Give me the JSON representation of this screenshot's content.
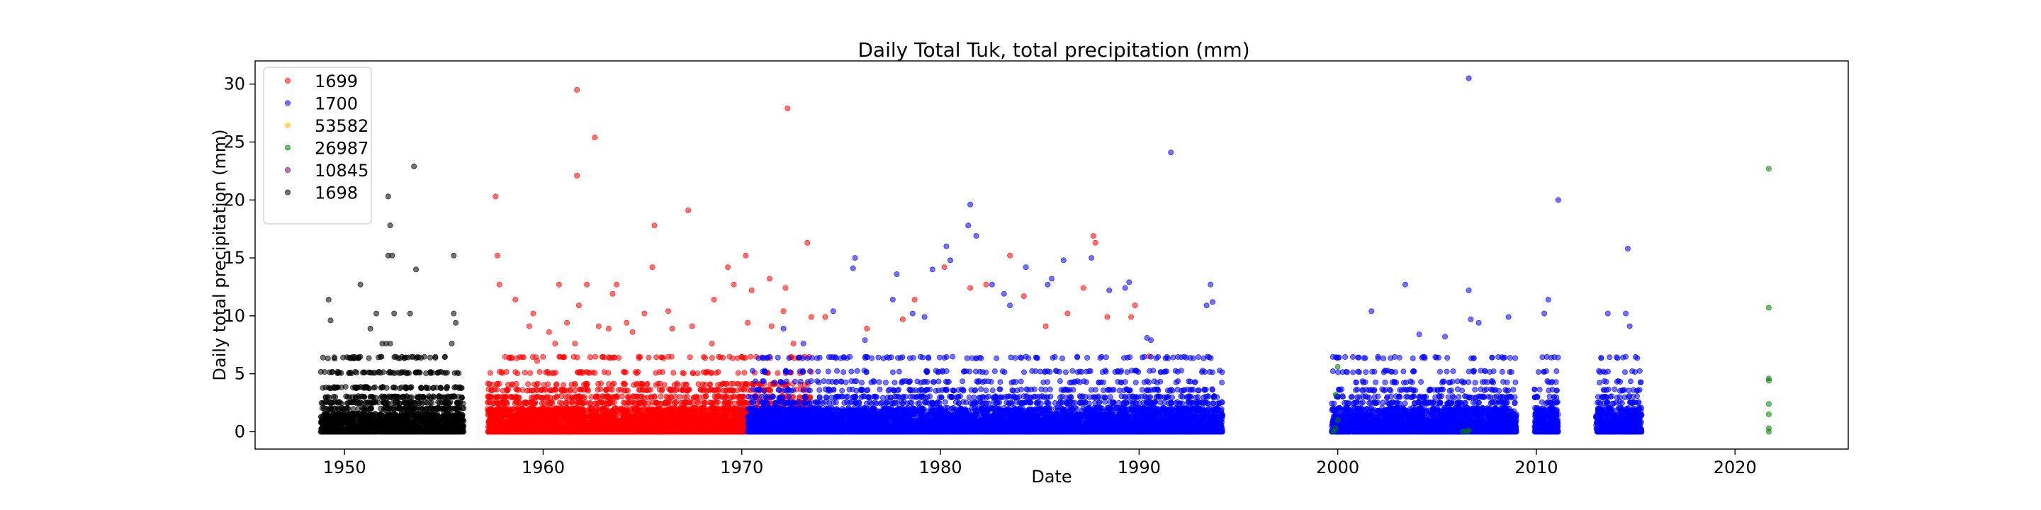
{
  "chart_data": {
    "type": "scatter",
    "title": "Daily Total Tuk, total precipitation (mm)",
    "xlabel": "Date",
    "ylabel": "Daily total precipitation (mm)",
    "xlim": [
      1945.5,
      2025.7
    ],
    "ylim": [
      -1.5,
      32
    ],
    "xticks": [
      1950,
      1960,
      1970,
      1980,
      1990,
      2000,
      2010,
      2020
    ],
    "yticks": [
      0,
      5,
      10,
      15,
      20,
      25,
      30
    ],
    "grid": false,
    "legend_position": "top-left",
    "series": [
      {
        "name": "1699",
        "color": "#ff0000",
        "active_range": [
          1957.2,
          1973.5
        ],
        "values": [
          [
            1957.6,
            20.3
          ],
          [
            1957.7,
            15.2
          ],
          [
            1957.8,
            12.7
          ],
          [
            1958.6,
            11.4
          ],
          [
            1959.3,
            9.1
          ],
          [
            1959.5,
            10.2
          ],
          [
            1959.7,
            6.1
          ],
          [
            1960.3,
            8.6
          ],
          [
            1960.6,
            7.6
          ],
          [
            1960.8,
            12.7
          ],
          [
            1961.2,
            9.4
          ],
          [
            1961.6,
            7.6
          ],
          [
            1961.7,
            29.5
          ],
          [
            1961.7,
            22.1
          ],
          [
            1961.8,
            10.9
          ],
          [
            1962.2,
            12.7
          ],
          [
            1962.6,
            25.4
          ],
          [
            1962.8,
            9.1
          ],
          [
            1963.3,
            8.9
          ],
          [
            1963.5,
            11.9
          ],
          [
            1963.7,
            12.7
          ],
          [
            1964.2,
            9.4
          ],
          [
            1964.5,
            8.6
          ],
          [
            1965.1,
            10.2
          ],
          [
            1965.5,
            14.2
          ],
          [
            1965.6,
            17.8
          ],
          [
            1966.3,
            10.4
          ],
          [
            1966.5,
            8.9
          ],
          [
            1967.3,
            19.1
          ],
          [
            1967.5,
            9.1
          ],
          [
            1968.5,
            7.6
          ],
          [
            1968.6,
            11.4
          ],
          [
            1969.3,
            14.2
          ],
          [
            1969.6,
            12.7
          ],
          [
            1970.2,
            15.2
          ],
          [
            1970.3,
            9.4
          ],
          [
            1970.5,
            12.2
          ],
          [
            1971.4,
            13.2
          ],
          [
            1971.5,
            9.1
          ],
          [
            1972.1,
            10.4
          ],
          [
            1972.2,
            12.4
          ],
          [
            1972.3,
            27.9
          ],
          [
            1972.6,
            7.6
          ],
          [
            1973.3,
            16.3
          ],
          [
            1973.5,
            9.9
          ],
          [
            1974.2,
            9.9
          ],
          [
            1976.3,
            8.9
          ],
          [
            1978.1,
            9.7
          ],
          [
            1978.7,
            11.4
          ],
          [
            1980.2,
            14.2
          ],
          [
            1981.5,
            12.4
          ],
          [
            1982.3,
            12.7
          ],
          [
            1983.5,
            15.2
          ],
          [
            1984.2,
            11.7
          ],
          [
            1985.3,
            9.1
          ],
          [
            1986.4,
            10.2
          ],
          [
            1987.2,
            12.4
          ],
          [
            1987.7,
            16.9
          ],
          [
            1987.8,
            16.3
          ],
          [
            1988.4,
            9.9
          ],
          [
            1989.6,
            9.9
          ],
          [
            1989.8,
            10.9
          ],
          [
            1990.5,
            6.5
          ]
        ],
        "density_rows": [
          0,
          0.3,
          0.5,
          0.8,
          1.0,
          1.3,
          1.5,
          1.8,
          2.0,
          2.5,
          3.0,
          3.6,
          4.1,
          5.1,
          6.4
        ]
      },
      {
        "name": "1700",
        "color": "#0000ff",
        "active_range": [
          1970.3,
          1994.2
        ],
        "values": [
          [
            1972.1,
            8.9
          ],
          [
            1973.1,
            7.6
          ],
          [
            1974.6,
            10.4
          ],
          [
            1975.6,
            14.1
          ],
          [
            1975.7,
            15.0
          ],
          [
            1976.2,
            7.9
          ],
          [
            1977.6,
            11.4
          ],
          [
            1977.8,
            13.6
          ],
          [
            1978.6,
            10.2
          ],
          [
            1979.2,
            9.9
          ],
          [
            1979.6,
            14.0
          ],
          [
            1980.3,
            16.0
          ],
          [
            1980.5,
            14.8
          ],
          [
            1981.4,
            17.8
          ],
          [
            1981.5,
            19.6
          ],
          [
            1981.8,
            16.9
          ],
          [
            1982.6,
            12.7
          ],
          [
            1983.2,
            11.9
          ],
          [
            1983.5,
            10.9
          ],
          [
            1984.3,
            14.2
          ],
          [
            1985.4,
            12.7
          ],
          [
            1985.6,
            13.2
          ],
          [
            1986.2,
            14.8
          ],
          [
            1987.6,
            15.0
          ],
          [
            1988.5,
            12.2
          ],
          [
            1989.3,
            12.4
          ],
          [
            1989.5,
            12.9
          ],
          [
            1990.4,
            8.1
          ],
          [
            1990.6,
            7.9
          ],
          [
            1991.6,
            24.1
          ],
          [
            1993.4,
            10.9
          ],
          [
            1993.6,
            12.7
          ],
          [
            1993.7,
            11.2
          ],
          [
            2001.7,
            10.4
          ],
          [
            2003.4,
            12.7
          ],
          [
            2004.1,
            8.4
          ],
          [
            2005.4,
            8.2
          ],
          [
            2006.6,
            30.5
          ],
          [
            2006.6,
            12.2
          ],
          [
            2006.7,
            9.7
          ],
          [
            2007.1,
            9.4
          ],
          [
            2008.6,
            9.9
          ],
          [
            2010.4,
            10.2
          ],
          [
            2010.6,
            11.4
          ],
          [
            2011.1,
            20.0
          ],
          [
            2013.6,
            10.2
          ],
          [
            2014.6,
            15.8
          ],
          [
            2014.5,
            10.2
          ],
          [
            2014.7,
            9.1
          ]
        ],
        "active_range_extra": [
          [
            1999.7,
            2009.0
          ],
          [
            2009.9,
            2011.1
          ],
          [
            2013.0,
            2015.3
          ]
        ],
        "density_rows": [
          0,
          0.2,
          0.4,
          0.6,
          0.8,
          1.0,
          1.3,
          1.5,
          1.8,
          2.0,
          2.5,
          3.0,
          3.6,
          4.3,
          5.2,
          6.4
        ]
      },
      {
        "name": "53582",
        "color": "#ffbf00",
        "values": []
      },
      {
        "name": "26987",
        "color": "#008000",
        "values": [
          [
            1999.8,
            0.0
          ],
          [
            1999.9,
            0.3
          ],
          [
            2000.0,
            1.0
          ],
          [
            2000.0,
            5.6
          ],
          [
            1999.9,
            3.2
          ],
          [
            2006.3,
            0.0
          ],
          [
            2006.5,
            0.0
          ],
          [
            2006.6,
            0.1
          ],
          [
            2021.7,
            22.7
          ],
          [
            2021.7,
            10.7
          ],
          [
            2021.7,
            4.6
          ],
          [
            2021.7,
            4.4
          ],
          [
            2021.7,
            2.4
          ],
          [
            2021.7,
            1.5
          ],
          [
            2021.7,
            0.3
          ],
          [
            2021.7,
            0.0
          ]
        ]
      },
      {
        "name": "10845",
        "color": "#800080",
        "values": []
      },
      {
        "name": "1698",
        "color": "#000000",
        "active_range": [
          1948.8,
          1956.0
        ],
        "values": [
          [
            1949.2,
            11.4
          ],
          [
            1949.3,
            9.6
          ],
          [
            1949.5,
            6.3
          ],
          [
            1950.8,
            12.7
          ],
          [
            1951.3,
            8.9
          ],
          [
            1951.6,
            10.2
          ],
          [
            1951.9,
            7.6
          ],
          [
            1952.2,
            20.3
          ],
          [
            1952.3,
            17.8
          ],
          [
            1952.2,
            15.2
          ],
          [
            1952.4,
            15.2
          ],
          [
            1952.1,
            7.6
          ],
          [
            1952.3,
            7.6
          ],
          [
            1952.5,
            10.2
          ],
          [
            1953.5,
            22.9
          ],
          [
            1953.6,
            14.0
          ],
          [
            1953.3,
            10.2
          ],
          [
            1955.5,
            15.2
          ],
          [
            1955.5,
            10.2
          ],
          [
            1955.6,
            9.4
          ],
          [
            1955.4,
            7.6
          ],
          [
            1950.3,
            5.1
          ],
          [
            1951.0,
            5.1
          ],
          [
            1952.9,
            5.1
          ],
          [
            1953.8,
            5.1
          ],
          [
            1954.7,
            5.1
          ]
        ],
        "density_rows": [
          0,
          0.3,
          0.5,
          0.8,
          1.0,
          1.3,
          1.5,
          2.0,
          2.5,
          3.0,
          3.8,
          5.1,
          6.4
        ]
      }
    ]
  }
}
